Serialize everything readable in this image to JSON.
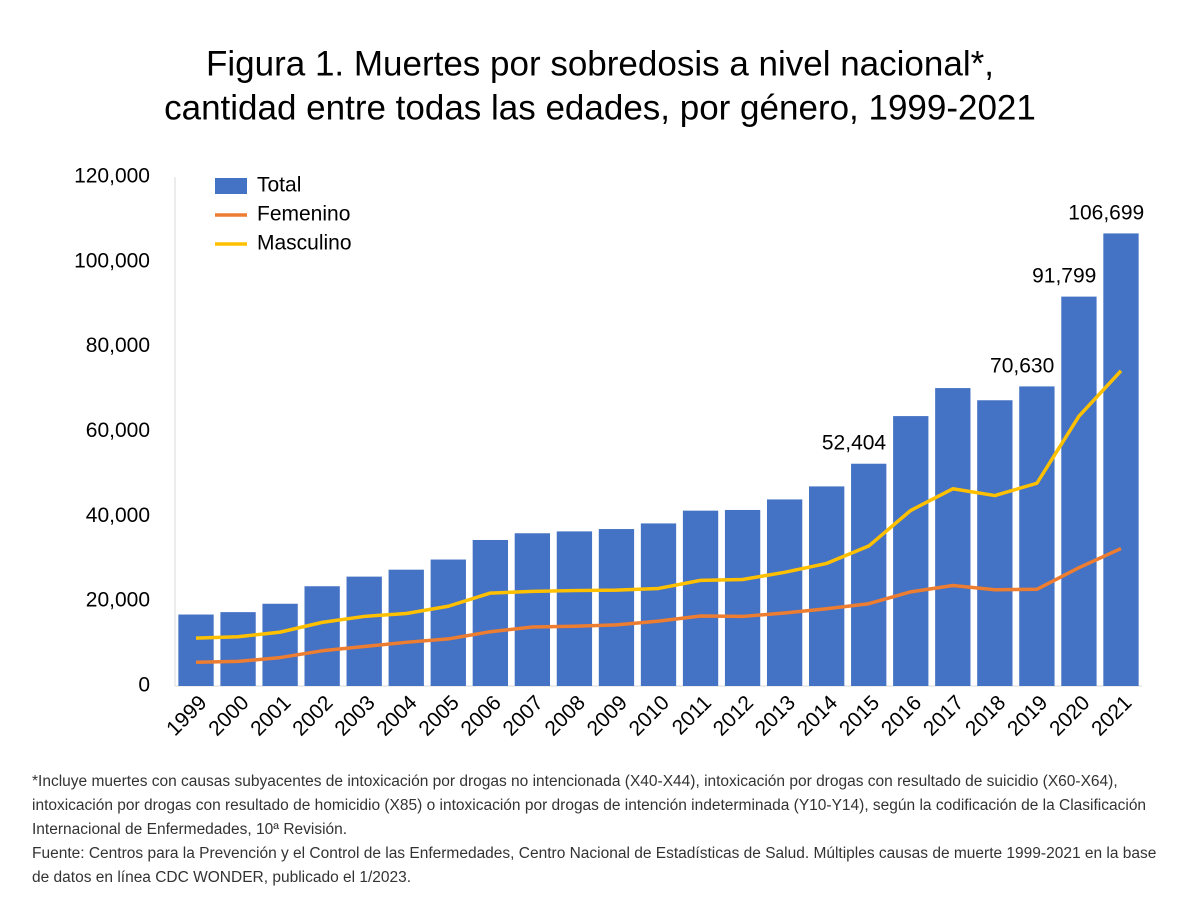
{
  "chart_data": {
    "type": "bar",
    "title": [
      "Figura 1. Muertes por sobredosis a nivel nacional*,",
      "cantidad entre todas las edades, por género, 1999-2021"
    ],
    "categories": [
      "1999",
      "2000",
      "2001",
      "2002",
      "2003",
      "2004",
      "2005",
      "2006",
      "2007",
      "2008",
      "2009",
      "2010",
      "2011",
      "2012",
      "2013",
      "2014",
      "2015",
      "2016",
      "2017",
      "2018",
      "2019",
      "2020",
      "2021"
    ],
    "series": [
      {
        "name": "Total",
        "type": "bar",
        "color": "#4472c4",
        "values": [
          16849,
          17415,
          19394,
          23518,
          25785,
          27424,
          29813,
          34425,
          36010,
          36450,
          37004,
          38329,
          41340,
          41502,
          43982,
          47055,
          52404,
          63632,
          70237,
          67367,
          70630,
          91799,
          106699
        ],
        "value_labels": [
          null,
          null,
          null,
          null,
          null,
          null,
          null,
          null,
          null,
          null,
          null,
          null,
          null,
          null,
          null,
          null,
          "52,404",
          null,
          null,
          null,
          "70,630",
          "91,799",
          "106,699"
        ]
      },
      {
        "name": "Femenino",
        "type": "line",
        "color": "#ed7d31",
        "values": [
          5600,
          5800,
          6700,
          8300,
          9300,
          10300,
          11100,
          12800,
          13900,
          14100,
          14400,
          15300,
          16500,
          16400,
          17200,
          18200,
          19400,
          22200,
          23700,
          22700,
          22800,
          27900,
          32400
        ]
      },
      {
        "name": "Masculino",
        "type": "line",
        "color": "#ffc000",
        "values": [
          11300,
          11600,
          12700,
          15000,
          16400,
          17100,
          18800,
          21900,
          22300,
          22500,
          22600,
          23000,
          24900,
          25100,
          26800,
          28900,
          33000,
          41400,
          46500,
          44900,
          47800,
          63600,
          74300
        ]
      }
    ],
    "ylim": [
      0,
      120000
    ],
    "yticks": [
      0,
      {
        "value": 20000,
        "label": "20,000"
      },
      {
        "value": 40000,
        "label": "40,000"
      },
      {
        "value": 60000,
        "label": "60,000"
      },
      {
        "value": 80000,
        "label": "80,000"
      },
      {
        "value": 100000,
        "label": "100,000"
      },
      {
        "value": 120000,
        "label": "120,000"
      }
    ],
    "grid": false,
    "legend": "top-left",
    "notes": [
      "*Incluye muertes con causas subyacentes de intoxicación por drogas no intencionada (X40-X44), intoxicación por drogas con resultado de suicidio (X60-X64), intoxicación por drogas con resultado de homicidio (X85) o intoxicación por drogas de intención indeterminada (Y10-Y14), según la codificación de la Clasificación Internacional de Enfermedades, 10ª Revisión.",
      "Fuente: Centros para la Prevención y el Control de las Enfermedades, Centro Nacional de Estadísticas de Salud. Múltiples causas de muerte 1999-2021 en la base de datos en línea CDC WONDER, publicado el 1/2023."
    ]
  }
}
